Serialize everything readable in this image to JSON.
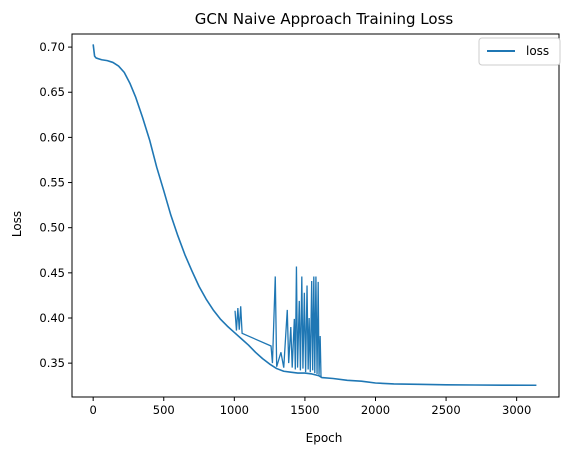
{
  "chart_data": {
    "type": "line",
    "title": "GCN Naive Approach Training Loss",
    "xlabel": "Epoch",
    "ylabel": "Loss",
    "xlim": [
      -150,
      3300
    ],
    "ylim": [
      0.3125,
      0.7145
    ],
    "xticks": [
      0,
      500,
      1000,
      1500,
      2000,
      2500,
      3000
    ],
    "yticks": [
      0.35,
      0.4,
      0.45,
      0.5,
      0.55,
      0.6,
      0.65,
      0.7
    ],
    "grid": false,
    "legend_position": "top-right",
    "colors": {
      "line": "#1f77b4",
      "axes": "#000000"
    },
    "series": [
      {
        "name": "loss",
        "x": [
          0,
          10,
          20,
          40,
          60,
          100,
          140,
          180,
          220,
          260,
          300,
          350,
          400,
          450,
          500,
          550,
          600,
          650,
          700,
          750,
          800,
          850,
          900,
          950,
          1000,
          1050,
          1100,
          1150,
          1200,
          1250,
          1300,
          1350,
          1400,
          1450,
          1500,
          1550,
          1600,
          1620,
          1700,
          1800,
          1900,
          2000,
          2130,
          2300,
          2500,
          2700,
          2900,
          3140
        ],
        "y": [
          0.703,
          0.69,
          0.688,
          0.687,
          0.686,
          0.685,
          0.683,
          0.679,
          0.672,
          0.66,
          0.645,
          0.622,
          0.597,
          0.567,
          0.541,
          0.514,
          0.491,
          0.47,
          0.452,
          0.435,
          0.421,
          0.409,
          0.399,
          0.391,
          0.384,
          0.377,
          0.37,
          0.362,
          0.355,
          0.349,
          0.344,
          0.341,
          0.34,
          0.339,
          0.339,
          0.338,
          0.336,
          0.334,
          0.333,
          0.331,
          0.33,
          0.328,
          0.327,
          0.3265,
          0.326,
          0.3258,
          0.3256,
          0.3255
        ]
      }
    ],
    "spikes": [
      {
        "x": 1005,
        "y": 0.408
      },
      {
        "x": 1015,
        "y": 0.386
      },
      {
        "x": 1025,
        "y": 0.411
      },
      {
        "x": 1035,
        "y": 0.387
      },
      {
        "x": 1045,
        "y": 0.413
      },
      {
        "x": 1055,
        "y": 0.383
      },
      {
        "x": 1260,
        "y": 0.369
      },
      {
        "x": 1270,
        "y": 0.35
      },
      {
        "x": 1290,
        "y": 0.446
      },
      {
        "x": 1300,
        "y": 0.346
      },
      {
        "x": 1330,
        "y": 0.362
      },
      {
        "x": 1350,
        "y": 0.345
      },
      {
        "x": 1375,
        "y": 0.409
      },
      {
        "x": 1385,
        "y": 0.35
      },
      {
        "x": 1400,
        "y": 0.39
      },
      {
        "x": 1410,
        "y": 0.345
      },
      {
        "x": 1425,
        "y": 0.399
      },
      {
        "x": 1432,
        "y": 0.343
      },
      {
        "x": 1440,
        "y": 0.457
      },
      {
        "x": 1448,
        "y": 0.345
      },
      {
        "x": 1460,
        "y": 0.419
      },
      {
        "x": 1468,
        "y": 0.342
      },
      {
        "x": 1478,
        "y": 0.446
      },
      {
        "x": 1486,
        "y": 0.344
      },
      {
        "x": 1496,
        "y": 0.428
      },
      {
        "x": 1505,
        "y": 0.34
      },
      {
        "x": 1515,
        "y": 0.436
      },
      {
        "x": 1523,
        "y": 0.343
      },
      {
        "x": 1530,
        "y": 0.4
      },
      {
        "x": 1538,
        "y": 0.34
      },
      {
        "x": 1548,
        "y": 0.441
      },
      {
        "x": 1555,
        "y": 0.342
      },
      {
        "x": 1563,
        "y": 0.446
      },
      {
        "x": 1570,
        "y": 0.339
      },
      {
        "x": 1578,
        "y": 0.446
      },
      {
        "x": 1586,
        "y": 0.338
      },
      {
        "x": 1594,
        "y": 0.44
      },
      {
        "x": 1600,
        "y": 0.337
      },
      {
        "x": 1608,
        "y": 0.38
      },
      {
        "x": 1614,
        "y": 0.335
      }
    ]
  }
}
